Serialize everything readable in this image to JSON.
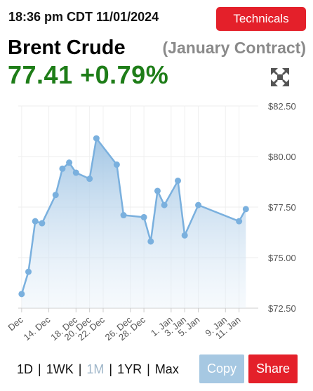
{
  "header": {
    "timestamp": "18:36 pm CDT 11/01/2024",
    "technicals_label": "Technicals"
  },
  "quote": {
    "name": "Brent Crude",
    "contract": "(January Contract)",
    "price": "77.41",
    "change": "+0.79%",
    "change_color": "#1e7d18"
  },
  "icons": {
    "expand": "expand-arrows-icon"
  },
  "periods": [
    {
      "label": "1D",
      "active": false
    },
    {
      "label": "1WK",
      "active": false
    },
    {
      "label": "1M",
      "active": true
    },
    {
      "label": "1YR",
      "active": false
    },
    {
      "label": "Max",
      "active": false
    }
  ],
  "actions": {
    "copy_label": "Copy",
    "share_label": "Share",
    "copy_color": "#a6c8e2",
    "share_color": "#e4202a"
  },
  "chart_data": {
    "type": "area",
    "title": "",
    "xlabel": "",
    "ylabel": "",
    "ylim": [
      72.5,
      82.5
    ],
    "yticks": [
      72.5,
      75.0,
      77.5,
      80.0,
      82.5
    ],
    "ytick_labels": [
      "$72.50",
      "$75.00",
      "$77.50",
      "$80.00",
      "$82.50"
    ],
    "x_tick_labels": [
      "Dec",
      "14. Dec",
      "18. Dec",
      "20. Dec",
      "22. Dec",
      "26. Dec",
      "28. Dec",
      "1. Jan",
      "3. Jan",
      "5. Jan",
      "9. Jan",
      "11. Jan"
    ],
    "x_tick_day_index": [
      10,
      14,
      18,
      20,
      22,
      26,
      28,
      32,
      34,
      36,
      40,
      42
    ],
    "x_day_range": [
      9.5,
      44
    ],
    "line_color": "#7ab0de",
    "grid": true,
    "series": [
      {
        "x_day_index": [
          10,
          11,
          12,
          13,
          15,
          16,
          17,
          18,
          20,
          21,
          24,
          25,
          28,
          29,
          30,
          31,
          33,
          34,
          36
        ],
        "x_labels": [
          "10 Dec",
          "11 Dec",
          "12 Dec",
          "13 Dec",
          "15 Dec",
          "16 Dec",
          "17 Dec",
          "18 Dec",
          "20 Dec",
          "21 Dec",
          "24 Dec",
          "25 Dec",
          "28 Dec",
          "29 Dec",
          "30 Dec",
          "31 Dec",
          "2 Jan",
          "3 Jan",
          "5 Jan"
        ],
        "values": [
          73.2,
          74.3,
          76.8,
          76.7,
          78.1,
          79.4,
          79.7,
          79.2,
          78.9,
          80.9,
          79.6,
          77.1,
          77.0,
          75.8,
          78.3,
          77.6,
          78.8,
          76.1,
          77.6
        ]
      }
    ],
    "extra_points": {
      "x_day_index": [
        42,
        43
      ],
      "values": [
        76.8,
        77.4
      ]
    }
  }
}
